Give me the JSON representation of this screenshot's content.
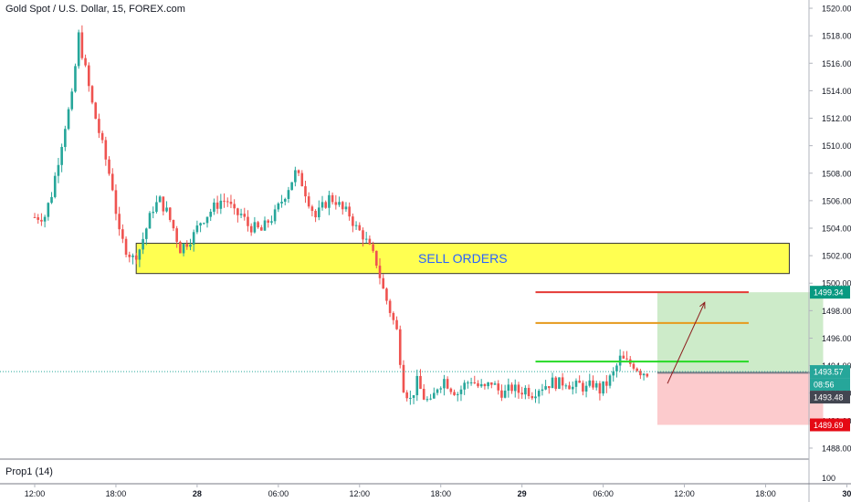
{
  "header": {
    "title": "Gold Spot / U.S. Dollar, 15, FOREX.com"
  },
  "indicator": {
    "label": "Prop1 (14)",
    "axis_value": "100"
  },
  "annotations": {
    "zone_label": "SELL ORDERS"
  },
  "price_tags": {
    "target": {
      "value": "1499.34",
      "color": "#089981"
    },
    "current": {
      "value": "1493.57",
      "color": "#26a69a"
    },
    "countdown": {
      "value": "08:56",
      "color": "#26a69a"
    },
    "entry": {
      "value": "1493.48",
      "color": "#434651"
    },
    "stop": {
      "value": "1489.69",
      "color": "#e50914"
    }
  },
  "colors": {
    "up": "#26a69a",
    "down": "#ef5350",
    "zone_fill": "#ffff33",
    "tp_zone": "#cdebc9",
    "sl_zone": "#fccbcd"
  },
  "chart_data": {
    "type": "candlestick",
    "title": "Gold Spot / U.S. Dollar, 15, FOREX.com",
    "y_ticks": [
      1488,
      1490,
      1492,
      1494,
      1496,
      1498,
      1500,
      1502,
      1504,
      1506,
      1508,
      1510,
      1512,
      1514,
      1516,
      1518,
      1520
    ],
    "y_tick_labels": [
      "1488.00",
      "1490.00",
      "1492.00",
      "1494.00",
      "1496.00",
      "1498.00",
      "1500.00",
      "1502.00",
      "1504.00",
      "1506.00",
      "1508.00",
      "1510.00",
      "1512.00",
      "1514.00",
      "1516.00",
      "1518.00",
      "1520.00"
    ],
    "ylim": [
      1487.2,
      1520.6
    ],
    "x_tick_labels": [
      "12:00",
      "18:00",
      "28",
      "06:00",
      "12:00",
      "18:00",
      "29",
      "06:00",
      "12:00",
      "18:00",
      "30"
    ],
    "x_tick_index": [
      0,
      24,
      48,
      72,
      96,
      120,
      144,
      168,
      192,
      216,
      240
    ],
    "close_path": [
      [
        0,
        1504.8
      ],
      [
        3,
        1504.9
      ],
      [
        5,
        1506.5
      ],
      [
        7,
        1509
      ],
      [
        9,
        1511.5
      ],
      [
        11,
        1513.5
      ],
      [
        13,
        1518
      ],
      [
        15,
        1515.5
      ],
      [
        17,
        1513
      ],
      [
        19,
        1511
      ],
      [
        21,
        1509
      ],
      [
        23,
        1507
      ],
      [
        25,
        1503.5
      ],
      [
        27,
        1502.5
      ],
      [
        29,
        1501.8
      ],
      [
        31,
        1502.5
      ],
      [
        33,
        1504
      ],
      [
        35,
        1505.5
      ],
      [
        37,
        1506
      ],
      [
        39,
        1505.2
      ],
      [
        41,
        1504
      ],
      [
        43,
        1502.5
      ],
      [
        45,
        1503
      ],
      [
        47,
        1503.5
      ],
      [
        49,
        1504.5
      ],
      [
        51,
        1505
      ],
      [
        53,
        1505.5
      ],
      [
        55,
        1506
      ],
      [
        57,
        1506
      ],
      [
        59,
        1505
      ],
      [
        61,
        1505
      ],
      [
        63,
        1504.2
      ],
      [
        65,
        1504
      ],
      [
        67,
        1503.8
      ],
      [
        69,
        1504.5
      ],
      [
        71,
        1505
      ],
      [
        73,
        1506
      ],
      [
        75,
        1507
      ],
      [
        77,
        1508
      ],
      [
        79,
        1507.3
      ],
      [
        81,
        1506
      ],
      [
        83,
        1504.8
      ],
      [
        85,
        1505.5
      ],
      [
        87,
        1506.2
      ],
      [
        89,
        1506
      ],
      [
        91,
        1505.3
      ],
      [
        93,
        1505
      ],
      [
        95,
        1504
      ],
      [
        97,
        1503.5
      ],
      [
        99,
        1502.5
      ],
      [
        101,
        1501.5
      ],
      [
        103,
        1499.5
      ],
      [
        105,
        1498
      ],
      [
        107,
        1496.5
      ],
      [
        109,
        1492.5
      ],
      [
        111,
        1491.5
      ],
      [
        113,
        1492.8
      ],
      [
        115,
        1491.7
      ],
      [
        117,
        1491.2
      ],
      [
        119,
        1492.5
      ],
      [
        121,
        1493
      ],
      [
        123,
        1492.4
      ],
      [
        125,
        1492
      ],
      [
        127,
        1492.6
      ],
      [
        129,
        1493
      ],
      [
        131,
        1492.5
      ],
      [
        133,
        1492.3
      ],
      [
        135,
        1492.8
      ],
      [
        137,
        1492.2
      ],
      [
        139,
        1492
      ],
      [
        141,
        1492.4
      ],
      [
        143,
        1492.1
      ],
      [
        145,
        1492.3
      ],
      [
        147,
        1492
      ],
      [
        149,
        1492.4
      ],
      [
        151,
        1492.6
      ],
      [
        153,
        1492.8
      ],
      [
        155,
        1492.7
      ],
      [
        157,
        1492.9
      ],
      [
        159,
        1492.4
      ],
      [
        161,
        1492.6
      ],
      [
        163,
        1492.3
      ],
      [
        165,
        1492.7
      ],
      [
        167,
        1492.2
      ],
      [
        169,
        1492.7
      ],
      [
        171,
        1493.4
      ],
      [
        173,
        1494.5
      ],
      [
        175,
        1494.2
      ],
      [
        177,
        1494.1
      ],
      [
        179,
        1493.6
      ],
      [
        181,
        1493.5
      ]
    ],
    "levels": [
      {
        "price": 1499.34,
        "color": "#e53935",
        "from_index": 148,
        "to_index": 211
      },
      {
        "price": 1497.1,
        "color": "#e69a1d",
        "from_index": 148,
        "to_index": 211
      },
      {
        "price": 1494.3,
        "color": "#26d926",
        "from_index": 148,
        "to_index": 211
      }
    ],
    "sell_zone": {
      "low": 1500.7,
      "high": 1502.9,
      "from_index": 30,
      "to_index": 223,
      "label": "SELL ORDERS"
    },
    "position": {
      "entry": 1493.48,
      "target": 1499.34,
      "stop": 1489.69,
      "from_index": 184,
      "to_index": 233
    },
    "current_price": 1493.57
  }
}
